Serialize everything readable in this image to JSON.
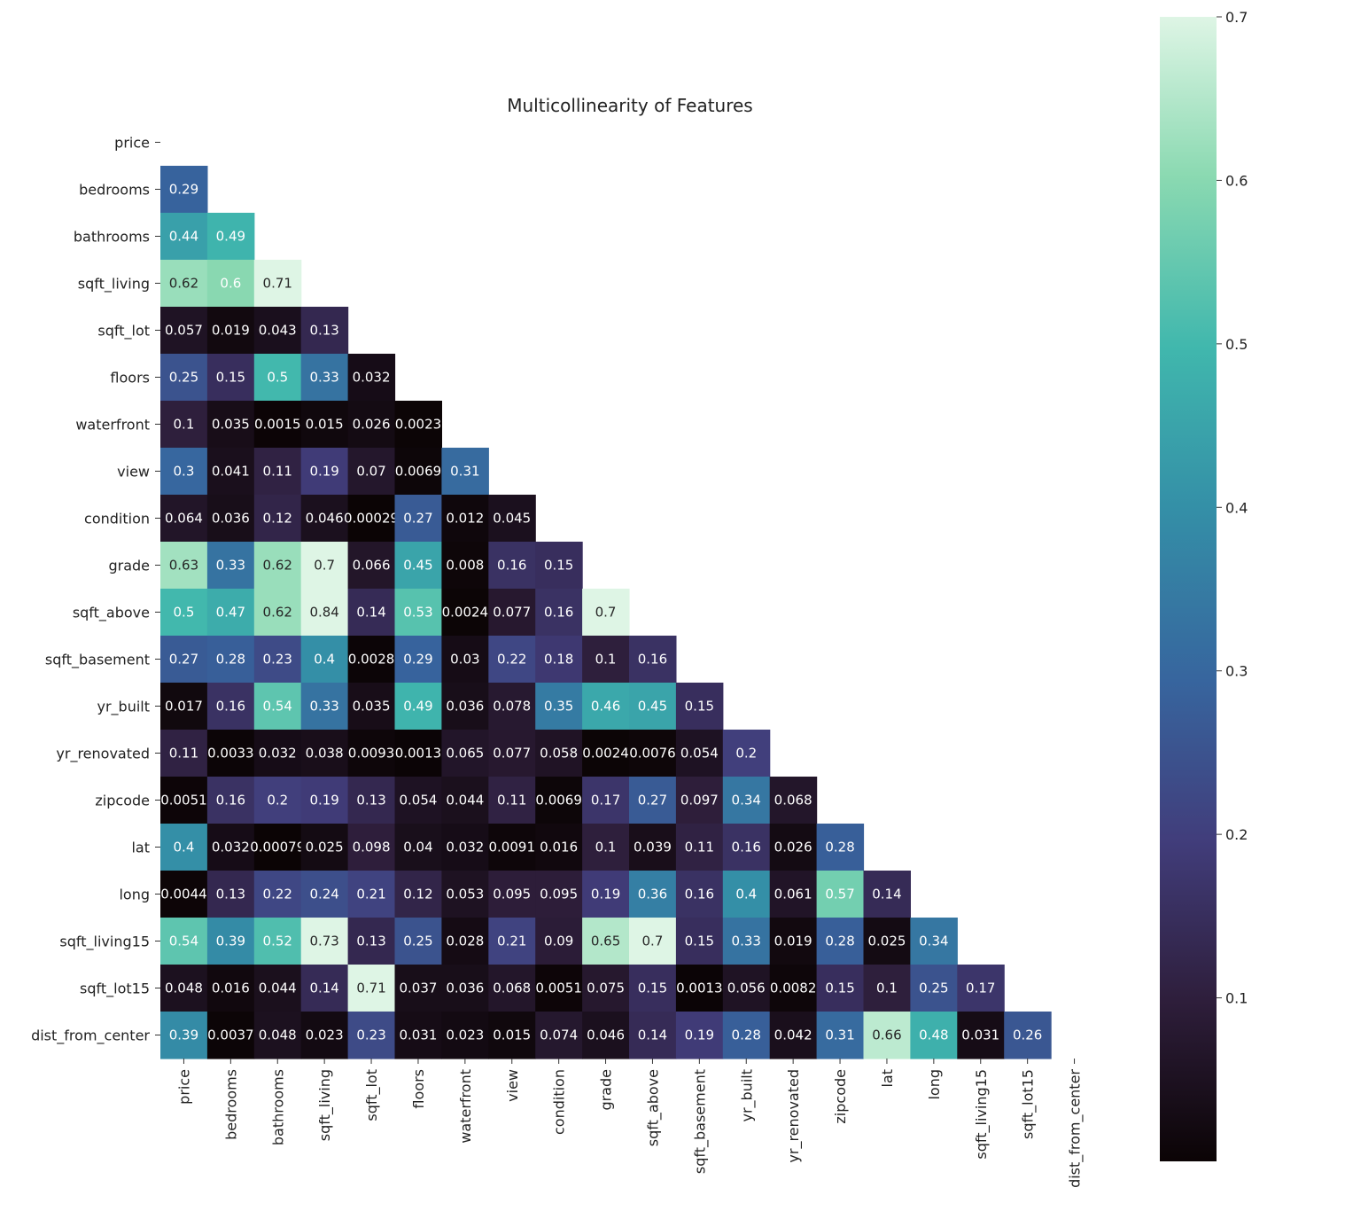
{
  "chart_data": {
    "type": "heatmap",
    "title": "Multicollinearity of Features",
    "labels": [
      "price",
      "bedrooms",
      "bathrooms",
      "sqft_living",
      "sqft_lot",
      "floors",
      "waterfront",
      "view",
      "condition",
      "grade",
      "sqft_above",
      "sqft_basement",
      "yr_built",
      "yr_renovated",
      "zipcode",
      "lat",
      "long",
      "sqft_living15",
      "sqft_lot15",
      "dist_from_center"
    ],
    "mask": "upper-triangle-including-diagonal",
    "matrix_lower": [
      [],
      [
        "0.29"
      ],
      [
        "0.44",
        "0.49"
      ],
      [
        "0.62",
        "0.6",
        "0.71"
      ],
      [
        "0.057",
        "0.019",
        "0.043",
        "0.13"
      ],
      [
        "0.25",
        "0.15",
        "0.5",
        "0.33",
        "0.032"
      ],
      [
        "0.1",
        "0.035",
        "0.0015",
        "0.015",
        "0.026",
        "0.0023"
      ],
      [
        "0.3",
        "0.041",
        "0.11",
        "0.19",
        "0.07",
        "0.0069",
        "0.31"
      ],
      [
        "0.064",
        "0.036",
        "0.12",
        "0.046",
        "0.00029",
        "0.27",
        "0.012",
        "0.045"
      ],
      [
        "0.63",
        "0.33",
        "0.62",
        "0.7",
        "0.066",
        "0.45",
        "0.008",
        "0.16",
        "0.15"
      ],
      [
        "0.5",
        "0.47",
        "0.62",
        "0.84",
        "0.14",
        "0.53",
        "0.0024",
        "0.077",
        "0.16",
        "0.7"
      ],
      [
        "0.27",
        "0.28",
        "0.23",
        "0.4",
        "0.0028",
        "0.29",
        "0.03",
        "0.22",
        "0.18",
        "0.1",
        "0.16"
      ],
      [
        "0.017",
        "0.16",
        "0.54",
        "0.33",
        "0.035",
        "0.49",
        "0.036",
        "0.078",
        "0.35",
        "0.46",
        "0.45",
        "0.15"
      ],
      [
        "0.11",
        "0.0033",
        "0.032",
        "0.038",
        "0.0093",
        "0.0013",
        "0.065",
        "0.077",
        "0.058",
        "0.0024",
        "0.0076",
        "0.054",
        "0.2"
      ],
      [
        "0.0051",
        "0.16",
        "0.2",
        "0.19",
        "0.13",
        "0.054",
        "0.044",
        "0.11",
        "0.0069",
        "0.17",
        "0.27",
        "0.097",
        "0.34",
        "0.068"
      ],
      [
        "0.4",
        "0.032",
        "0.00079",
        "0.025",
        "0.098",
        "0.04",
        "0.032",
        "0.0091",
        "0.016",
        "0.1",
        "0.039",
        "0.11",
        "0.16",
        "0.026",
        "0.28"
      ],
      [
        "0.0044",
        "0.13",
        "0.22",
        "0.24",
        "0.21",
        "0.12",
        "0.053",
        "0.095",
        "0.095",
        "0.19",
        "0.36",
        "0.16",
        "0.4",
        "0.061",
        "0.57",
        "0.14"
      ],
      [
        "0.54",
        "0.39",
        "0.52",
        "0.73",
        "0.13",
        "0.25",
        "0.028",
        "0.21",
        "0.09",
        "0.65",
        "0.7",
        "0.15",
        "0.33",
        "0.019",
        "0.28",
        "0.025",
        "0.34"
      ],
      [
        "0.048",
        "0.016",
        "0.044",
        "0.14",
        "0.71",
        "0.037",
        "0.036",
        "0.068",
        "0.0051",
        "0.075",
        "0.15",
        "0.0013",
        "0.056",
        "0.0082",
        "0.15",
        "0.1",
        "0.25",
        "0.17"
      ],
      [
        "0.39",
        "0.0037",
        "0.048",
        "0.023",
        "0.23",
        "0.031",
        "0.023",
        "0.015",
        "0.074",
        "0.046",
        "0.14",
        "0.19",
        "0.28",
        "0.042",
        "0.31",
        "0.66",
        "0.48",
        "0.031",
        "0.26"
      ]
    ],
    "colorbar": {
      "colormap": "mako-like dark-purple to light-green",
      "vmin": 0.0,
      "vmax": 0.7,
      "ticks": [
        "0.1",
        "0.2",
        "0.3",
        "0.4",
        "0.5",
        "0.6",
        "0.7"
      ]
    }
  }
}
